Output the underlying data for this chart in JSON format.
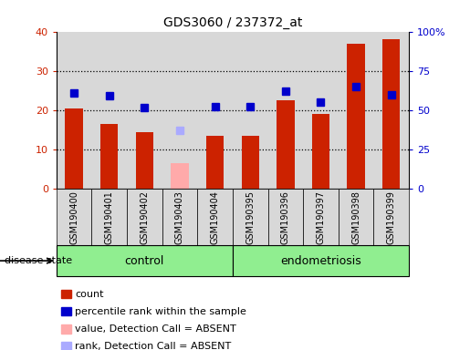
{
  "title": "GDS3060 / 237372_at",
  "samples": [
    "GSM190400",
    "GSM190401",
    "GSM190402",
    "GSM190403",
    "GSM190404",
    "GSM190395",
    "GSM190396",
    "GSM190397",
    "GSM190398",
    "GSM190399"
  ],
  "counts": [
    20.5,
    16.5,
    14.5,
    6.5,
    13.5,
    13.5,
    22.5,
    19.0,
    37.0,
    38.0
  ],
  "percentile_ranks": [
    61.0,
    59.0,
    51.5,
    37.5,
    52.5,
    52.5,
    62.0,
    55.0,
    65.0,
    60.0
  ],
  "absent_flags": [
    false,
    false,
    false,
    true,
    false,
    false,
    false,
    false,
    false,
    false
  ],
  "bar_color_present": "#cc2200",
  "bar_color_absent": "#ffaaaa",
  "rank_color_present": "#0000cc",
  "rank_color_absent": "#aaaaff",
  "ylim_left": [
    0,
    40
  ],
  "ylim_right": [
    0,
    100
  ],
  "yticks_left": [
    0,
    10,
    20,
    30,
    40
  ],
  "ytick_labels_right": [
    "0",
    "25",
    "50",
    "75",
    "100%"
  ],
  "group_label_control": "control",
  "group_label_endometriosis": "endometriosis",
  "disease_state_label": "disease state",
  "n_control": 5,
  "legend_items": [
    {
      "label": "count",
      "color": "#cc2200"
    },
    {
      "label": "percentile rank within the sample",
      "color": "#0000cc"
    },
    {
      "label": "value, Detection Call = ABSENT",
      "color": "#ffaaaa"
    },
    {
      "label": "rank, Detection Call = ABSENT",
      "color": "#aaaaff"
    }
  ],
  "bar_width": 0.5,
  "rank_marker_size": 6,
  "background_color": "#ffffff",
  "tick_label_color_left": "#cc2200",
  "tick_label_color_right": "#0000cc",
  "col_bg_color": "#d8d8d8",
  "group_box_color": "#90EE90",
  "figsize": [
    5.15,
    3.84
  ],
  "dpi": 100
}
